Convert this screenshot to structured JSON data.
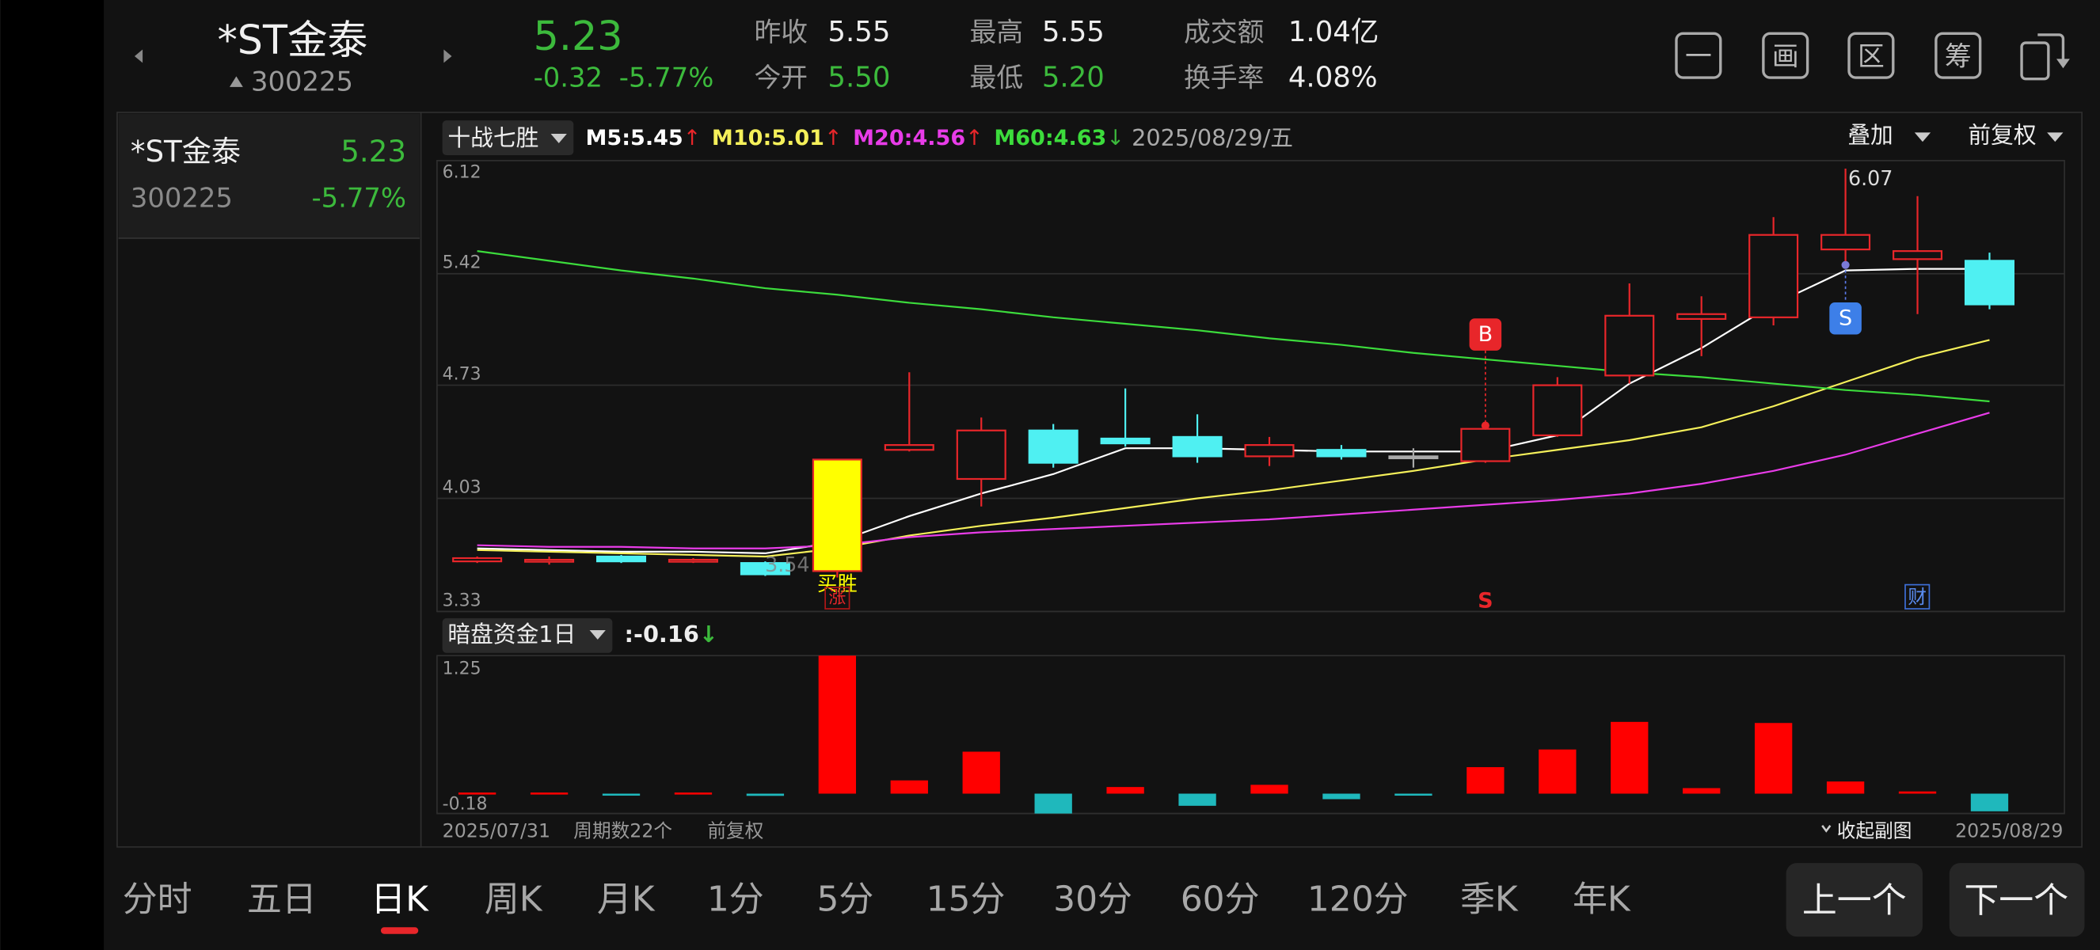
{
  "header": {
    "name": "*ST金泰",
    "code": "300225",
    "price": "5.23",
    "change": "-0.32",
    "change_pct": "-5.77%",
    "stats": [
      {
        "label": "昨收",
        "value": "5.55",
        "color": "#eeeeee"
      },
      {
        "label": "今开",
        "value": "5.50",
        "color": "#3cba3c"
      },
      {
        "label": "最高",
        "value": "5.55",
        "color": "#eeeeee"
      },
      {
        "label": "最低",
        "value": "5.20",
        "color": "#3cba3c"
      },
      {
        "label": "成交额",
        "value": "1.04亿",
        "color": "#eeeeee"
      },
      {
        "label": "换手率",
        "value": "4.08%",
        "color": "#eeeeee"
      }
    ],
    "toolbar_icons": [
      "一",
      "画",
      "区",
      "筹"
    ]
  },
  "watchlist": [
    {
      "name": "*ST金泰",
      "price": "5.23",
      "code": "300225",
      "change_pct": "-5.77%"
    }
  ],
  "chart_data": {
    "type": "candlestick",
    "indicator": "十战七胜",
    "date_label": "2025/08/29/五",
    "overlay": "叠加",
    "adjust": "前复权",
    "categories": [
      "2025/07/31",
      null,
      null,
      null,
      null,
      null,
      null,
      null,
      null,
      null,
      null,
      null,
      null,
      null,
      null,
      null,
      null,
      null,
      null,
      null,
      null,
      "2025/08/29"
    ],
    "open": [
      3.64,
      3.64,
      3.67,
      3.64,
      3.63,
      3.58,
      4.33,
      4.15,
      4.45,
      4.4,
      4.41,
      4.29,
      4.33,
      4.29,
      4.26,
      4.42,
      4.79,
      5.14,
      5.15,
      5.57,
      5.51,
      5.5
    ],
    "high": [
      3.67,
      3.67,
      3.68,
      3.66,
      3.64,
      4.27,
      4.81,
      4.53,
      4.49,
      4.71,
      4.55,
      4.41,
      4.36,
      4.34,
      4.48,
      4.78,
      5.36,
      5.28,
      5.77,
      6.07,
      5.9,
      5.55
    ],
    "low": [
      3.63,
      3.62,
      3.63,
      3.63,
      3.55,
      3.54,
      4.32,
      3.98,
      4.22,
      4.35,
      4.25,
      4.23,
      4.27,
      4.22,
      4.25,
      4.41,
      4.74,
      4.91,
      5.1,
      5.48,
      5.17,
      5.2
    ],
    "close": [
      3.66,
      3.65,
      3.64,
      3.65,
      3.56,
      4.27,
      4.36,
      4.45,
      4.25,
      4.37,
      4.29,
      4.36,
      4.29,
      4.29,
      4.46,
      4.73,
      5.16,
      5.17,
      5.66,
      5.66,
      5.56,
      5.23
    ],
    "candle_colors": [
      "#e8262a",
      "#e8262a",
      "#4ff0f2",
      "#e8262a",
      "#4ff0f2",
      "#ffff00",
      "#e8262a",
      "#e8262a",
      "#4ff0f2",
      "#4ff0f2",
      "#4ff0f2",
      "#e8262a",
      "#4ff0f2",
      "#aaaaaa",
      "#e8262a",
      "#e8262a",
      "#e8262a",
      "#e8262a",
      "#e8262a",
      "#e8262a",
      "#e8262a",
      "#4ff0f2"
    ],
    "up_color": "#e8262a",
    "down_color": "#4ff0f2",
    "ylim": [
      3.33,
      6.12
    ],
    "yticks": [
      6.12,
      5.42,
      4.73,
      4.03,
      3.33
    ],
    "grid": true,
    "ma": [
      {
        "name": "M5:",
        "color": "#ffffff",
        "trend": "↑",
        "trend_color": "#e8262a",
        "values": [
          3.72,
          3.71,
          3.7,
          3.7,
          3.69,
          3.76,
          3.92,
          4.06,
          4.18,
          4.34,
          4.34,
          4.33,
          4.32,
          4.32,
          4.32,
          4.42,
          4.74,
          4.96,
          5.23,
          5.44,
          5.45,
          5.45
        ]
      },
      {
        "name": "M10:",
        "color": "#f5f05a",
        "trend": "↑",
        "trend_color": "#e8262a",
        "values": [
          3.71,
          3.7,
          3.69,
          3.68,
          3.67,
          3.72,
          3.8,
          3.86,
          3.91,
          3.97,
          4.03,
          4.08,
          4.14,
          4.2,
          4.27,
          4.33,
          4.39,
          4.47,
          4.6,
          4.75,
          4.9,
          5.01
        ]
      },
      {
        "name": "M20:",
        "color": "#e83ce8",
        "trend": "↑",
        "trend_color": "#e8262a",
        "values": [
          3.74,
          3.73,
          3.73,
          3.72,
          3.72,
          3.74,
          3.79,
          3.82,
          3.84,
          3.86,
          3.88,
          3.9,
          3.93,
          3.96,
          3.99,
          4.02,
          4.06,
          4.12,
          4.2,
          4.3,
          4.43,
          4.56
        ]
      },
      {
        "name": "M60:",
        "color": "#3cdc3c",
        "trend": "↓",
        "trend_color": "#3cba3c",
        "values": [
          5.56,
          5.5,
          5.44,
          5.39,
          5.33,
          5.29,
          5.24,
          5.2,
          5.15,
          5.11,
          5.07,
          5.02,
          4.98,
          4.93,
          4.89,
          4.85,
          4.81,
          4.78,
          4.74,
          4.7,
          4.67,
          4.63
        ]
      }
    ],
    "annotations": {
      "marker_b": "B",
      "marker_s": "S",
      "signal_s": "S",
      "finance": "财",
      "limit_up": "涨",
      "signal": "买胜"
    },
    "footer": {
      "period_count": "周期数22个",
      "adjust": "前复权",
      "collapse": "收起副图"
    },
    "sub_chart": {
      "type": "bar",
      "name": "暗盘资金1日",
      "value_prefix": ":",
      "trend": "↓",
      "trend_color": "#3cba3c",
      "values": [
        0.01,
        0.01,
        -0.01,
        0.01,
        -0.02,
        1.25,
        0.12,
        0.38,
        -0.18,
        0.06,
        -0.11,
        0.08,
        -0.05,
        -0.01,
        0.24,
        0.4,
        0.65,
        0.05,
        0.64,
        0.11,
        0.02,
        -0.16
      ],
      "up_color": "#ff0000",
      "down_color": "#1fb8bc",
      "ylim": [
        -0.18,
        1.25
      ],
      "yticks": [
        1.25,
        -0.18
      ]
    }
  },
  "tabs": [
    {
      "label": "分时"
    },
    {
      "label": "五日"
    },
    {
      "label": "日K",
      "active": true
    },
    {
      "label": "周K"
    },
    {
      "label": "月K"
    },
    {
      "label": "1分"
    },
    {
      "label": "5分"
    },
    {
      "label": "15分"
    },
    {
      "label": "30分"
    },
    {
      "label": "60分"
    },
    {
      "label": "120分"
    },
    {
      "label": "季K"
    },
    {
      "label": "年K"
    }
  ],
  "buttons": {
    "prev": "上一个",
    "next": "下一个"
  }
}
